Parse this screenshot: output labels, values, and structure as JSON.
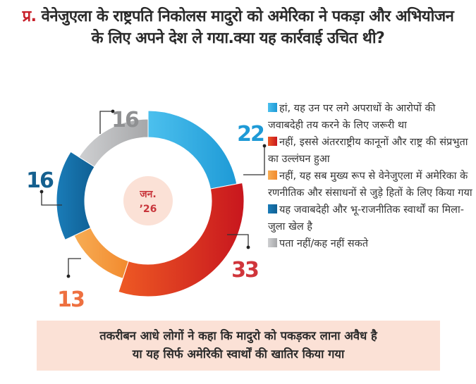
{
  "question": {
    "prefix": "प्र.",
    "text": "वेनेजुएला के राष्ट्रपति निकोलस मादुरो को अमेरिका ने पकड़ा और अभियोजन के लिए अपने देश ले गया.क्या यह कार्रवाई उचित थी?"
  },
  "center_label": {
    "line1": "जन.",
    "line2": "’26"
  },
  "chart_data": {
    "type": "pie",
    "variant": "donut",
    "title": "प्र. वेनेजुएला के राष्ट्रपति निकोलस मादुरो को अमेरिका ने पकड़ा और अभियोजन के लिए अपने देश ले गया.क्या यह कार्रवाई उचित थी?",
    "center_text": "जन. ’26",
    "unit": "%",
    "legend_position": "right",
    "slices": [
      {
        "label": "हां, यह उन पर लगे अपराधों के आरोपों की जवाबदेही तय करने के लिए जरूरी था",
        "value": 22,
        "color": "#1e9ad6",
        "color_light": "#4cc0ee"
      },
      {
        "label": "नहीं, इससे अंतरराष्ट्रीय कानूनों और राष्ट्र की संप्रभुता का उल्लंघन हुआ",
        "value": 33,
        "color": "#c8161e",
        "color_light": "#ee5a24"
      },
      {
        "label": "नहीं, यह सब मुख्य रूप से वेनेजुएला में अमेरिका के रणनीतिक और संसाधनों से जुड़े हितों के लिए किया गया",
        "value": 13,
        "color": "#f28a2e",
        "color_light": "#f7ad55"
      },
      {
        "label": "यह जवाबदेही और भू-राजनीतिक स्वार्थों का मिला-जुला खेल है",
        "value": 16,
        "color": "#0f5f93",
        "color_light": "#1a7cb8"
      },
      {
        "label": "पता नहीं/कह नहीं सकते",
        "value": 16,
        "color": "#a6a7a9",
        "color_light": "#cfd0d2"
      }
    ],
    "value_label_colors": [
      "#1e9ad6",
      "#d0353b",
      "#ee7040",
      "#15608f",
      "#8f9092"
    ]
  },
  "footer": {
    "line1": "तकरीबन आधे लोगों ने कहा कि मादुरो को पकड़कर लाना अवैध है",
    "line2": "या यह सिर्फ अमेरिकी स्वार्थों की खातिर किया गया"
  }
}
